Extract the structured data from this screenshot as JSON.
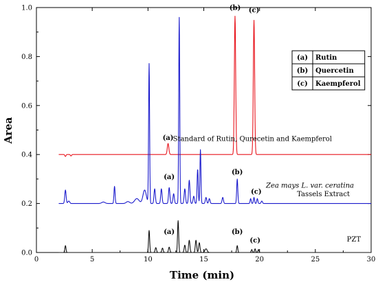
{
  "chart_data": {
    "type": "line",
    "xlabel": "Time (min)",
    "ylabel": "Area",
    "xlim": [
      0,
      30
    ],
    "ylim": [
      0,
      1.0
    ],
    "x_ticks": [
      "0",
      "5",
      "10",
      "15",
      "20",
      "25",
      "30"
    ],
    "y_ticks": [
      "0.0",
      "0.2",
      "0.4",
      "0.6",
      "0.8",
      "1.0"
    ],
    "grid": false,
    "legend": {
      "placement": "top-right",
      "entries": [
        {
          "key": "(a)",
          "name": "Rutin"
        },
        {
          "key": "(b)",
          "name": "Quercetin"
        },
        {
          "key": "(c)",
          "name": "Kaempferol"
        }
      ]
    },
    "series": [
      {
        "name": "Standard of Rutin, Qurecetin and Kaempferol",
        "color": "#e8141c",
        "baseline": 0.4,
        "peaks": [
          {
            "x": 2.6,
            "h": -0.008,
            "w": 0.05
          },
          {
            "x": 3.1,
            "h": -0.006,
            "w": 0.05
          },
          {
            "x": 11.8,
            "h": 0.045,
            "w": 0.07
          },
          {
            "x": 17.8,
            "h": 0.565,
            "w": 0.06
          },
          {
            "x": 19.5,
            "h": 0.548,
            "w": 0.06
          }
        ],
        "annotations": [
          {
            "text": "(a)",
            "x": 11.8,
            "y": 0.46
          },
          {
            "text": "(b)",
            "x": 17.8,
            "y": 0.99
          },
          {
            "text": "(c)",
            "x": 19.5,
            "y": 0.98
          }
        ]
      },
      {
        "name_lines": [
          "Zea mays L. var. ceratina",
          "Tassels Extract"
        ],
        "color": "#1a1acc",
        "baseline": 0.2,
        "peaks": [
          {
            "x": 2.6,
            "h": 0.055,
            "w": 0.06
          },
          {
            "x": 2.9,
            "h": 0.01,
            "w": 0.08
          },
          {
            "x": 6.0,
            "h": 0.006,
            "w": 0.15
          },
          {
            "x": 7.0,
            "h": 0.07,
            "w": 0.05
          },
          {
            "x": 8.2,
            "h": 0.008,
            "w": 0.15
          },
          {
            "x": 9.0,
            "h": 0.02,
            "w": 0.2
          },
          {
            "x": 9.7,
            "h": 0.055,
            "w": 0.15
          },
          {
            "x": 10.1,
            "h": 0.57,
            "w": 0.045
          },
          {
            "x": 10.6,
            "h": 0.06,
            "w": 0.06
          },
          {
            "x": 11.2,
            "h": 0.06,
            "w": 0.06
          },
          {
            "x": 11.9,
            "h": 0.065,
            "w": 0.06
          },
          {
            "x": 12.3,
            "h": 0.04,
            "w": 0.06
          },
          {
            "x": 12.8,
            "h": 0.76,
            "w": 0.045
          },
          {
            "x": 13.3,
            "h": 0.06,
            "w": 0.06
          },
          {
            "x": 13.7,
            "h": 0.095,
            "w": 0.06
          },
          {
            "x": 14.1,
            "h": 0.03,
            "w": 0.06
          },
          {
            "x": 14.45,
            "h": 0.14,
            "w": 0.05
          },
          {
            "x": 14.7,
            "h": 0.22,
            "w": 0.045
          },
          {
            "x": 15.2,
            "h": 0.025,
            "w": 0.06
          },
          {
            "x": 15.5,
            "h": 0.02,
            "w": 0.06
          },
          {
            "x": 16.7,
            "h": 0.025,
            "w": 0.06
          },
          {
            "x": 18.0,
            "h": 0.1,
            "w": 0.05
          },
          {
            "x": 19.2,
            "h": 0.02,
            "w": 0.05
          },
          {
            "x": 19.5,
            "h": 0.025,
            "w": 0.05
          },
          {
            "x": 19.8,
            "h": 0.02,
            "w": 0.05
          },
          {
            "x": 20.2,
            "h": 0.01,
            "w": 0.06
          }
        ],
        "annotations": [
          {
            "text": "(a)",
            "x": 11.9,
            "y": 0.3
          },
          {
            "text": "(b)",
            "x": 18.0,
            "y": 0.32
          },
          {
            "text": "(c)",
            "x": 19.7,
            "y": 0.24
          }
        ]
      },
      {
        "name": "PZT",
        "color": "#111111",
        "baseline": 0.0,
        "peaks": [
          {
            "x": 2.6,
            "h": 0.028,
            "w": 0.05
          },
          {
            "x": 10.1,
            "h": 0.09,
            "w": 0.05
          },
          {
            "x": 10.7,
            "h": 0.02,
            "w": 0.06
          },
          {
            "x": 11.3,
            "h": 0.018,
            "w": 0.06
          },
          {
            "x": 11.9,
            "h": 0.022,
            "w": 0.06
          },
          {
            "x": 12.7,
            "h": 0.13,
            "w": 0.05
          },
          {
            "x": 13.3,
            "h": 0.03,
            "w": 0.06
          },
          {
            "x": 13.7,
            "h": 0.05,
            "w": 0.06
          },
          {
            "x": 14.3,
            "h": 0.05,
            "w": 0.06
          },
          {
            "x": 14.6,
            "h": 0.04,
            "w": 0.06
          },
          {
            "x": 15.2,
            "h": 0.015,
            "w": 0.1
          },
          {
            "x": 18.0,
            "h": 0.028,
            "w": 0.05
          },
          {
            "x": 19.3,
            "h": 0.012,
            "w": 0.05
          },
          {
            "x": 19.6,
            "h": 0.015,
            "w": 0.05
          },
          {
            "x": 19.9,
            "h": 0.012,
            "w": 0.05
          }
        ],
        "annotations": [
          {
            "text": "(a)",
            "x": 11.9,
            "y": 0.075
          },
          {
            "text": "(b)",
            "x": 18.0,
            "y": 0.075
          },
          {
            "text": "(c)",
            "x": 19.6,
            "y": 0.04
          }
        ]
      }
    ]
  }
}
